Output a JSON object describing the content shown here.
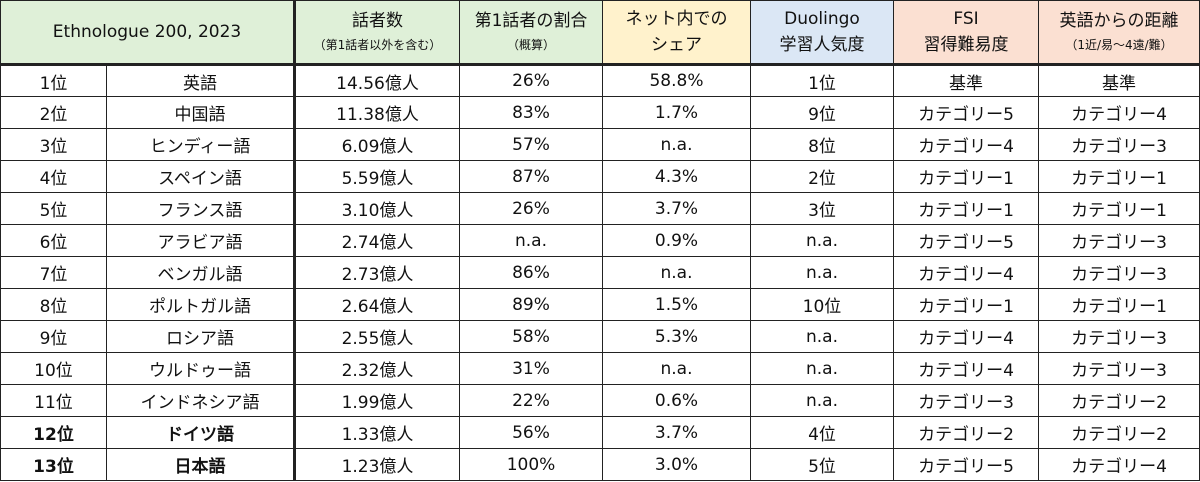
{
  "colors": {
    "rank_header_bg": "#dff0d8",
    "speakers_header_bg": "#dff0d8",
    "native_header_bg": "#dff0d8",
    "web_share_header_bg": "#fff2cc",
    "duolingo_header_bg": "#dbe7f5",
    "fsi_header_bg": "#fbe0d2",
    "distance_header_bg": "#fbe0d2"
  },
  "header": {
    "rank": "Ethnologue 200, 2023",
    "speakers": "話者数",
    "speakers_sub": "（第1話者以外を含む）",
    "native_ratio": "第1話者の割合",
    "native_ratio_sub": "（概算）",
    "web_share_line1": "ネット内での",
    "web_share_line2": "シェア",
    "duolingo_line1": "Duolingo",
    "duolingo_line2": "学習人気度",
    "fsi_line1": "FSI",
    "fsi_line2": "習得難易度",
    "distance": "英語からの距離",
    "distance_sub": "（1近/易～4遠/難）"
  },
  "rows": [
    {
      "rank": "1位",
      "language": "英語",
      "speakers": "14.56億人",
      "native": "26%",
      "web": "58.8%",
      "duolingo": "1位",
      "fsi": "基準",
      "distance": "基準",
      "bold": false
    },
    {
      "rank": "2位",
      "language": "中国語",
      "speakers": "11.38億人",
      "native": "83%",
      "web": "1.7%",
      "duolingo": "9位",
      "fsi": "カテゴリー5",
      "distance": "カテゴリー4",
      "bold": false
    },
    {
      "rank": "3位",
      "language": "ヒンディー語",
      "speakers": "6.09億人",
      "native": "57%",
      "web": "n.a.",
      "duolingo": "8位",
      "fsi": "カテゴリー4",
      "distance": "カテゴリー3",
      "bold": false
    },
    {
      "rank": "4位",
      "language": "スペイン語",
      "speakers": "5.59億人",
      "native": "87%",
      "web": "4.3%",
      "duolingo": "2位",
      "fsi": "カテゴリー1",
      "distance": "カテゴリー1",
      "bold": false
    },
    {
      "rank": "5位",
      "language": "フランス語",
      "speakers": "3.10億人",
      "native": "26%",
      "web": "3.7%",
      "duolingo": "3位",
      "fsi": "カテゴリー1",
      "distance": "カテゴリー1",
      "bold": false
    },
    {
      "rank": "6位",
      "language": "アラビア語",
      "speakers": "2.74億人",
      "native": "n.a.",
      "web": "0.9%",
      "duolingo": "n.a.",
      "fsi": "カテゴリー5",
      "distance": "カテゴリー3",
      "bold": false
    },
    {
      "rank": "7位",
      "language": "ベンガル語",
      "speakers": "2.73億人",
      "native": "86%",
      "web": "n.a.",
      "duolingo": "n.a.",
      "fsi": "カテゴリー4",
      "distance": "カテゴリー3",
      "bold": false
    },
    {
      "rank": "8位",
      "language": "ポルトガル語",
      "speakers": "2.64億人",
      "native": "89%",
      "web": "1.5%",
      "duolingo": "10位",
      "fsi": "カテゴリー1",
      "distance": "カテゴリー1",
      "bold": false
    },
    {
      "rank": "9位",
      "language": "ロシア語",
      "speakers": "2.55億人",
      "native": "58%",
      "web": "5.3%",
      "duolingo": "n.a.",
      "fsi": "カテゴリー4",
      "distance": "カテゴリー3",
      "bold": false
    },
    {
      "rank": "10位",
      "language": "ウルドゥー語",
      "speakers": "2.32億人",
      "native": "31%",
      "web": "n.a.",
      "duolingo": "n.a.",
      "fsi": "カテゴリー4",
      "distance": "カテゴリー3",
      "bold": false
    },
    {
      "rank": "11位",
      "language": "インドネシア語",
      "speakers": "1.99億人",
      "native": "22%",
      "web": "0.6%",
      "duolingo": "n.a.",
      "fsi": "カテゴリー3",
      "distance": "カテゴリー2",
      "bold": false
    },
    {
      "rank": "12位",
      "language": "ドイツ語",
      "speakers": "1.33億人",
      "native": "56%",
      "web": "3.7%",
      "duolingo": "4位",
      "fsi": "カテゴリー2",
      "distance": "カテゴリー2",
      "bold": true
    },
    {
      "rank": "13位",
      "language": "日本語",
      "speakers": "1.23億人",
      "native": "100%",
      "web": "3.0%",
      "duolingo": "5位",
      "fsi": "カテゴリー5",
      "distance": "カテゴリー4",
      "bold": true
    }
  ]
}
